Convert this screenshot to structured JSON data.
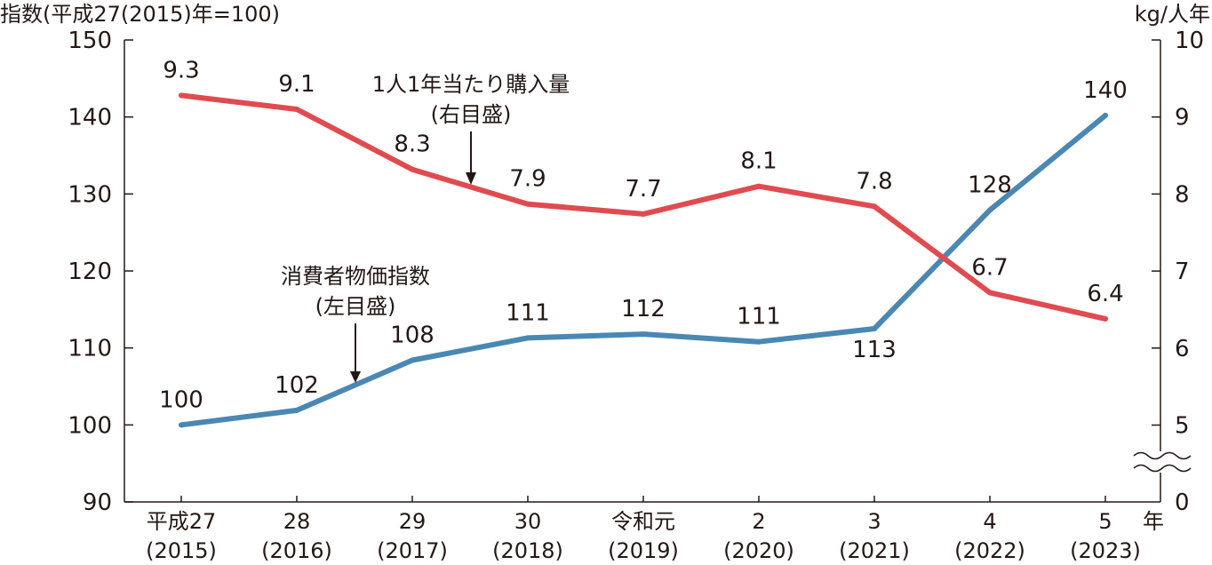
{
  "chart_data": {
    "type": "line",
    "left_axis_title": "指数(平成27(2015)年=100)",
    "right_axis_title": "kg/人年",
    "x_unit": "年",
    "categories": [
      [
        "平成27",
        "(2015)"
      ],
      [
        "28",
        "(2016)"
      ],
      [
        "29",
        "(2017)"
      ],
      [
        "30",
        "(2018)"
      ],
      [
        "令和元",
        "(2019)"
      ],
      [
        "2",
        "(2020)"
      ],
      [
        "3",
        "(2021)"
      ],
      [
        "4",
        "(2022)"
      ],
      [
        "5",
        "(2023)"
      ]
    ],
    "left_axis": {
      "ylim": [
        90,
        150
      ],
      "ticks": [
        "90",
        "100",
        "110",
        "120",
        "130",
        "140",
        "150"
      ]
    },
    "right_axis": {
      "ylim": [
        0,
        10
      ],
      "ticks": [
        "0",
        "5",
        "6",
        "7",
        "8",
        "9",
        "10"
      ],
      "broken": true
    },
    "series": [
      {
        "name": "消費者物価指数",
        "name_sub": "(左目盛)",
        "axis": "left",
        "color": "#4a88b3",
        "values": [
          100,
          101.9,
          108.4,
          111.3,
          111.8,
          110.8,
          112.5,
          127.9,
          140.2
        ],
        "labels": [
          "100",
          "102",
          "108",
          "111",
          "112",
          "111",
          "113",
          "128",
          "140"
        ]
      },
      {
        "name": "1人1年当たり購入量",
        "name_sub": "(右目盛)",
        "axis": "right",
        "color": "#e04b50",
        "values": [
          9.28,
          9.1,
          8.32,
          7.87,
          7.74,
          8.1,
          7.84,
          6.72,
          6.38
        ],
        "labels": [
          "9.3",
          "9.1",
          "8.3",
          "7.9",
          "7.7",
          "8.1",
          "7.8",
          "6.7",
          "6.4"
        ]
      }
    ]
  }
}
